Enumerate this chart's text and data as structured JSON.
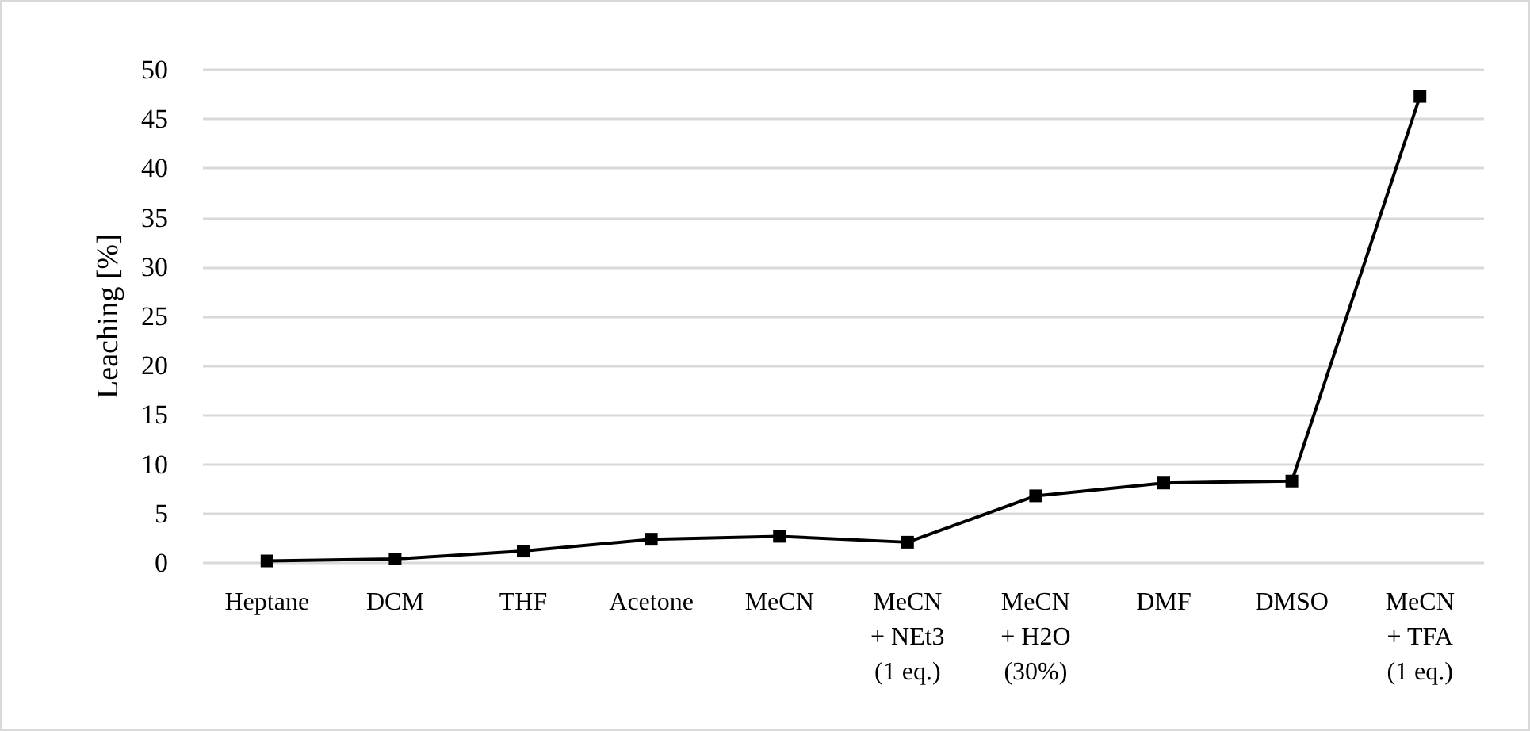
{
  "chart_data": {
    "type": "line",
    "ylabel": "Leaching [%]",
    "categories": [
      "Heptane",
      "DCM",
      "THF",
      "Acetone",
      "MeCN",
      "MeCN\n+ NEt3\n(1 eq.)",
      "MeCN\n+ H2O\n(30%)",
      "DMF",
      "DMSO",
      "MeCN\n+ TFA\n(1 eq.)"
    ],
    "series": [
      {
        "color": "#000000",
        "values": [
          0.2,
          0.4,
          1.2,
          2.4,
          2.7,
          2.1,
          6.8,
          8.1,
          8.3,
          47.3
        ]
      }
    ],
    "ylim": [
      0,
      50
    ],
    "yticks": [
      0,
      5,
      10,
      15,
      20,
      25,
      30,
      35,
      40,
      45,
      50
    ],
    "grid": "y",
    "marker": "square",
    "line_style": "solid"
  }
}
